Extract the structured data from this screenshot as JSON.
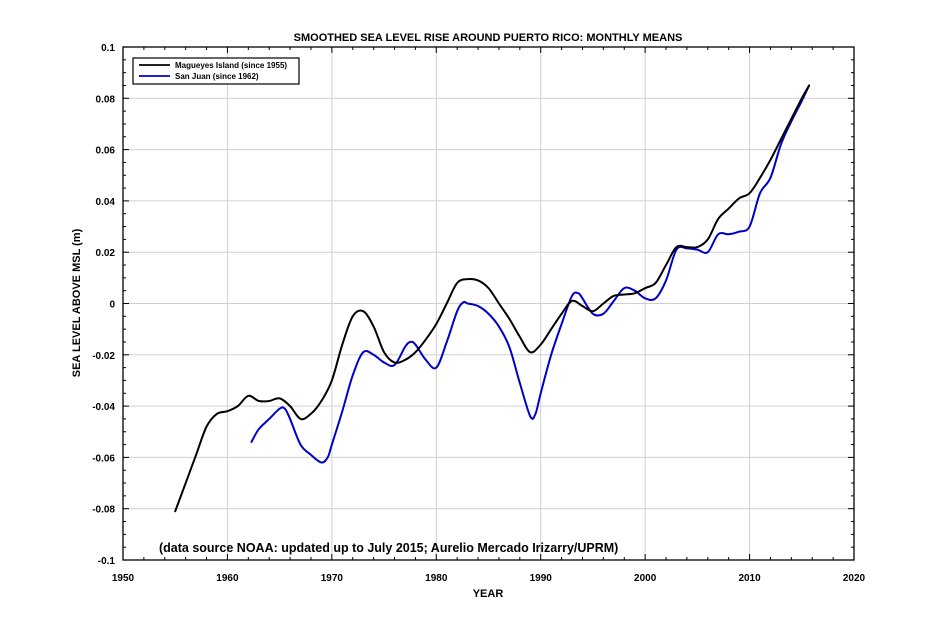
{
  "chart_data": {
    "type": "line",
    "title": "SMOOTHED SEA LEVEL RISE AROUND PUERTO RICO: MONTHLY MEANS",
    "xlabel": "YEAR",
    "ylabel": "SEA LEVEL ABOVE MSL (m)",
    "xlim": [
      1950,
      2020
    ],
    "ylim": [
      -0.1,
      0.1
    ],
    "xticks": [
      1950,
      1960,
      1970,
      1980,
      1990,
      2000,
      2010,
      2020
    ],
    "xtick_labels": [
      "1950",
      "1960",
      "1970",
      "1980",
      "1990",
      "2000",
      "2010",
      "2020"
    ],
    "yticks": [
      -0.1,
      -0.08,
      -0.06,
      -0.04,
      -0.02,
      0,
      0.02,
      0.04,
      0.06,
      0.08,
      0.1
    ],
    "ytick_labels": [
      "-0.1",
      "-0.08",
      "-0.06",
      "-0.04",
      "-0.02",
      "0",
      "0.02",
      "0.04",
      "0.06",
      "0.08",
      "0.1"
    ],
    "grid": true,
    "legend_position": "top-left",
    "annotation": "(data source NOAA: updated up to July 2015; Aurelio Mercado Irizarry/UPRM)",
    "series": [
      {
        "name": "Magueyes Island (since 1955)",
        "color": "#000000",
        "x": [
          1955,
          1956,
          1957,
          1958,
          1959,
          1960,
          1961,
          1962,
          1963,
          1964,
          1965,
          1966,
          1967,
          1968,
          1969,
          1970,
          1971,
          1972,
          1973,
          1974,
          1975,
          1976,
          1977,
          1978,
          1979,
          1980,
          1981,
          1982,
          1983,
          1984,
          1985,
          1986,
          1987,
          1988,
          1989,
          1990,
          1991,
          1992,
          1993,
          1994,
          1995,
          1996,
          1997,
          1998,
          1999,
          2000,
          2001,
          2002,
          2003,
          2004,
          2005,
          2006,
          2007,
          2008,
          2009,
          2010,
          2011,
          2012,
          2013,
          2014,
          2015,
          2015.7
        ],
        "y": [
          -0.081,
          -0.07,
          -0.059,
          -0.048,
          -0.043,
          -0.042,
          -0.04,
          -0.036,
          -0.038,
          -0.038,
          -0.037,
          -0.04,
          -0.045,
          -0.043,
          -0.038,
          -0.03,
          -0.016,
          -0.005,
          -0.003,
          -0.009,
          -0.019,
          -0.023,
          -0.022,
          -0.019,
          -0.014,
          -0.008,
          0.0,
          0.008,
          0.0095,
          0.009,
          0.006,
          0.0,
          -0.006,
          -0.013,
          -0.019,
          -0.016,
          -0.01,
          -0.004,
          0.001,
          -0.001,
          -0.003,
          0.0,
          0.003,
          0.0035,
          0.004,
          0.006,
          0.008,
          0.015,
          0.022,
          0.022,
          0.022,
          0.025,
          0.033,
          0.037,
          0.041,
          0.043,
          0.049,
          0.056,
          0.064,
          0.072,
          0.08,
          0.085
        ]
      },
      {
        "name": "San Juan (since 1962)",
        "color": "#0000cc",
        "x": [
          1962.3,
          1963,
          1964,
          1965,
          1965.5,
          1966,
          1967,
          1968,
          1969,
          1969.6,
          1970,
          1971,
          1972,
          1973,
          1974,
          1975,
          1976,
          1977,
          1977.5,
          1978,
          1979,
          1980,
          1981,
          1982,
          1982.6,
          1983,
          1984,
          1985,
          1986,
          1987,
          1988,
          1989,
          1989.5,
          1990,
          1991,
          1992,
          1993,
          1993.6,
          1994,
          1995,
          1996,
          1997,
          1998,
          1999,
          2000,
          2001,
          2002,
          2003,
          2004,
          2005,
          2006,
          2007,
          2008,
          2009,
          2010,
          2011,
          2012,
          2013,
          2014,
          2015,
          2015.7
        ],
        "y": [
          -0.054,
          -0.049,
          -0.045,
          -0.041,
          -0.041,
          -0.045,
          -0.055,
          -0.059,
          -0.062,
          -0.06,
          -0.055,
          -0.042,
          -0.028,
          -0.019,
          -0.02,
          -0.023,
          -0.024,
          -0.017,
          -0.015,
          -0.016,
          -0.022,
          -0.025,
          -0.015,
          -0.003,
          0.0005,
          0.0,
          -0.001,
          -0.004,
          -0.009,
          -0.017,
          -0.031,
          -0.044,
          -0.043,
          -0.035,
          -0.02,
          -0.008,
          0.003,
          0.004,
          0.002,
          -0.004,
          -0.004,
          0.001,
          0.006,
          0.005,
          0.002,
          0.002,
          0.009,
          0.021,
          0.0215,
          0.021,
          0.02,
          0.027,
          0.027,
          0.028,
          0.03,
          0.043,
          0.049,
          0.062,
          0.071,
          0.079,
          0.085
        ]
      }
    ]
  }
}
